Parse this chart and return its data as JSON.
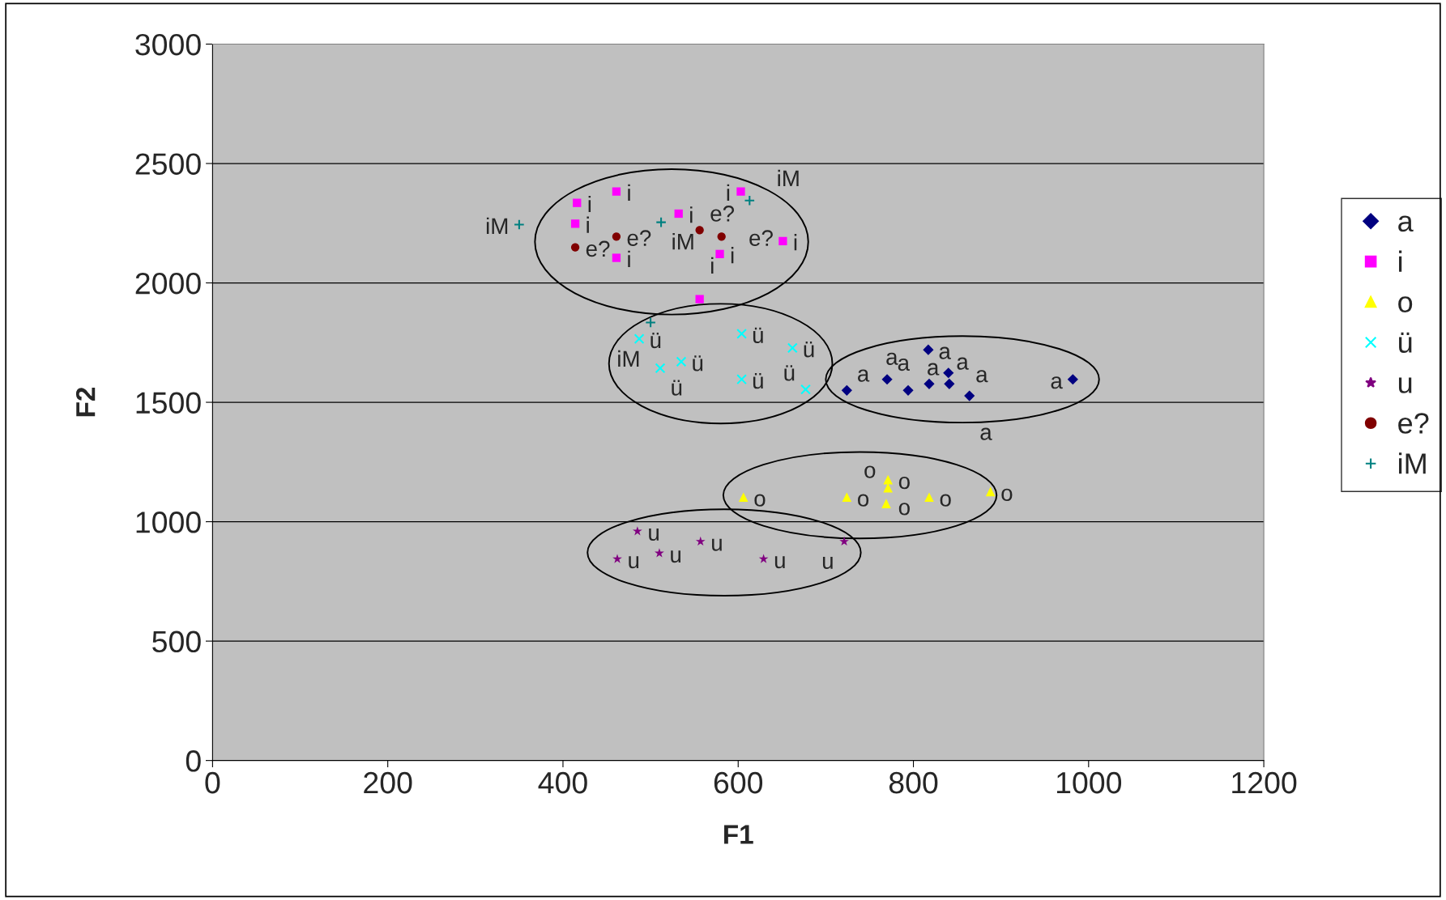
{
  "chart_data": {
    "type": "scatter",
    "xlabel": "F1",
    "ylabel": "F2",
    "xlim": [
      0,
      1200
    ],
    "ylim": [
      0,
      3000
    ],
    "xticks": [
      0,
      200,
      400,
      600,
      800,
      1000,
      1200
    ],
    "yticks": [
      0,
      500,
      1000,
      1500,
      2000,
      2500,
      3000
    ],
    "grid": "y",
    "legend": "right",
    "series": [
      {
        "name": "a",
        "color": "#000080",
        "marker": "diamond",
        "x": [
          817,
          770,
          794,
          818,
          840,
          841,
          864,
          982,
          724
        ],
        "values": [
          1720,
          1596,
          1550,
          1577,
          1623,
          1577,
          1527,
          1596,
          1550
        ],
        "value_labels": [
          "a",
          "a",
          "a",
          "a",
          "a",
          "a",
          "a",
          "a",
          "a"
        ]
      },
      {
        "name": "i",
        "color": "#ff00ff",
        "marker": "square",
        "x": [
          416,
          461,
          414,
          461,
          532,
          603,
          579,
          651,
          556
        ],
        "values": [
          2335,
          2383,
          2248,
          2105,
          2290,
          2383,
          2121,
          2175,
          1932
        ],
        "value_labels": [
          "i",
          "i",
          "i",
          "i",
          "i",
          "i",
          "i",
          "i",
          "i"
        ]
      },
      {
        "name": "o",
        "color": "#ffff00",
        "marker": "triangle",
        "x": [
          606,
          724,
          771,
          771,
          769,
          818,
          888
        ],
        "values": [
          1103,
          1103,
          1176,
          1142,
          1076,
          1103,
          1126
        ],
        "value_labels": [
          "o",
          "o",
          "o",
          "o",
          "o",
          "o",
          "o"
        ]
      },
      {
        "name": "ü",
        "color": "#00ffff",
        "marker": "cross",
        "x": [
          487,
          511,
          535,
          604,
          604,
          662,
          677
        ],
        "values": [
          1766,
          1643,
          1670,
          1787,
          1596,
          1728,
          1554
        ],
        "value_labels": [
          "ü",
          "ü",
          "ü",
          "ü",
          "ü",
          "ü",
          "ü"
        ]
      },
      {
        "name": "u",
        "color": "#800080",
        "marker": "star",
        "x": [
          485,
          462,
          510,
          557,
          629,
          721
        ],
        "values": [
          960,
          844,
          868,
          917,
          844,
          917
        ],
        "value_labels": [
          "u",
          "u",
          "u",
          "u",
          "u",
          "u"
        ]
      },
      {
        "name": "e?",
        "color": "#800000",
        "marker": "circle",
        "x": [
          414,
          461,
          556,
          581
        ],
        "values": [
          2149,
          2194,
          2221,
          2194
        ],
        "value_labels": [
          "e?",
          "e?",
          "e?",
          "e?"
        ]
      },
      {
        "name": "iM",
        "color": "#008080",
        "marker": "plus",
        "x": [
          350,
          512,
          613,
          500
        ],
        "values": [
          2244,
          2254,
          2345,
          1834
        ],
        "value_labels": [
          "iM",
          "iM",
          "iM",
          "iM"
        ]
      }
    ]
  }
}
